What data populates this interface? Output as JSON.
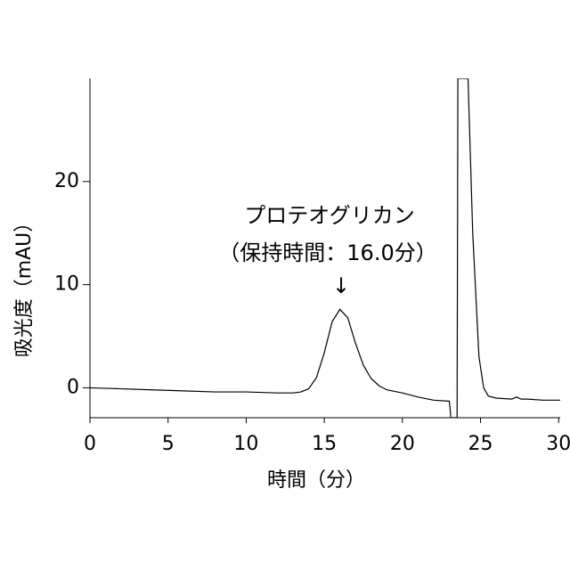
{
  "chart_data": {
    "type": "line",
    "annotation_title": "プロテオグリカン",
    "annotation_subtitle": "（保持時間：16.0分）",
    "annotation_arrow": "↓",
    "x_label": "時間（分）",
    "y_label": "吸光度（mAU）",
    "xlim": [
      0,
      30.1
    ],
    "ylim": [
      -2.9,
      30
    ],
    "xticks": [
      0,
      5,
      10,
      15,
      20,
      25,
      30
    ],
    "yticks": [
      0,
      10,
      20
    ],
    "series": [
      {
        "color": "#000000",
        "x": [
          0,
          2,
          4,
          6,
          8,
          10,
          12,
          13,
          13.5,
          14,
          14.5,
          15,
          15.5,
          16,
          16.5,
          17,
          17.5,
          18,
          18.5,
          19,
          20,
          21,
          22,
          23,
          23.05,
          23.1,
          23.5,
          23.55,
          23.6,
          24.2,
          24.5,
          24.9,
          25.2,
          25.5,
          26,
          27,
          27.3,
          27.6,
          28,
          29,
          30.1
        ],
        "values": [
          0.0,
          -0.1,
          -0.2,
          -0.3,
          -0.4,
          -0.4,
          -0.5,
          -0.5,
          -0.4,
          -0.1,
          1.0,
          3.4,
          6.4,
          7.6,
          6.8,
          4.3,
          2.2,
          0.9,
          0.2,
          -0.2,
          -0.5,
          -0.9,
          -1.2,
          -1.3,
          -2.0,
          -2.9,
          -2.9,
          30,
          30,
          30,
          15,
          3,
          0,
          -0.8,
          -1.0,
          -1.1,
          -0.9,
          -1.1,
          -1.1,
          -1.2,
          -1.2
        ]
      }
    ]
  }
}
